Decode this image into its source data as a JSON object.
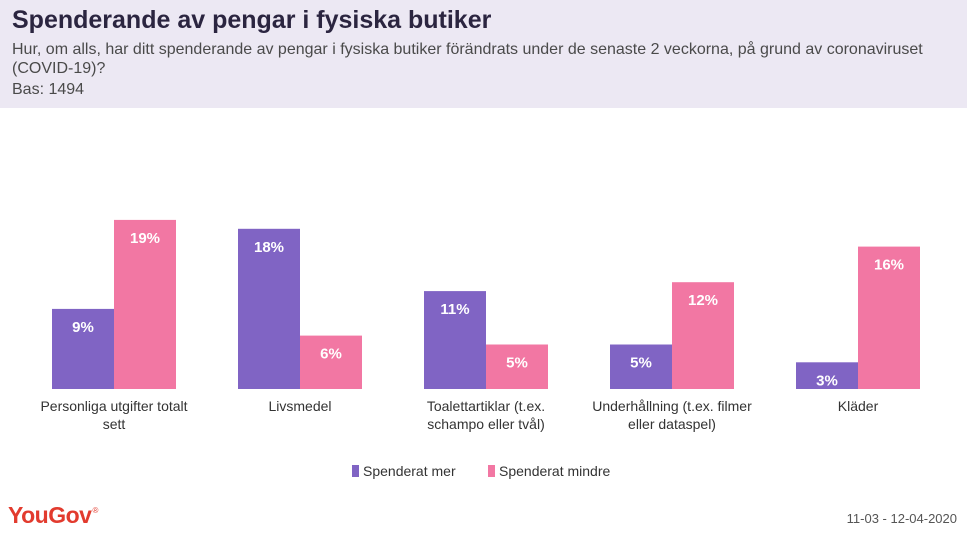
{
  "header": {
    "title": "Spenderande av pengar i fysiska butiker",
    "subtitle": "Hur, om alls, har ditt spenderande av pengar i fysiska butiker förändrats under de senaste 2 veckorna, på grund av coronaviruset (COVID-19)?",
    "base": "Bas: 1494"
  },
  "chart_data": {
    "type": "bar",
    "categories": [
      [
        "Personliga utgifter totalt",
        "sett"
      ],
      [
        "Livsmedel"
      ],
      [
        "Toalettartiklar (t.ex.",
        "schampo eller tvål)"
      ],
      [
        "Underhållning (t.ex. filmer",
        "eller dataspel)"
      ],
      [
        "Kläder"
      ]
    ],
    "series": [
      {
        "name": "Spenderat mer",
        "color": "#8064c4",
        "values": [
          9,
          18,
          11,
          5,
          3
        ]
      },
      {
        "name": "Spenderat mindre",
        "color": "#f277a3",
        "values": [
          19,
          6,
          5,
          12,
          16
        ]
      }
    ],
    "value_suffix": "%",
    "ylim": [
      0,
      20
    ],
    "legend_position": "bottom-center",
    "grid": false
  },
  "footer": {
    "logo": "YouGov",
    "logo_mark": "®",
    "date": "11-03 - 12-04-2020"
  }
}
